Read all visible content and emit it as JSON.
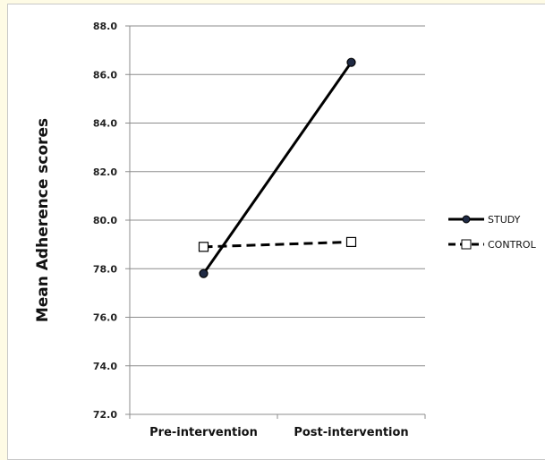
{
  "chart_data": {
    "type": "line",
    "categories": [
      "Pre-intervention",
      "Post-intervention"
    ],
    "ylabel": "Mean Adherence scores",
    "xlabel": "",
    "ylim": [
      72.0,
      88.0
    ],
    "y_ticks": [
      "72.0",
      "74.0",
      "76.0",
      "78.0",
      "80.0",
      "82.0",
      "84.0",
      "86.0",
      "88.0"
    ],
    "grid": true,
    "legend_position": "right",
    "series": [
      {
        "name": "STUDY",
        "values": [
          77.8,
          86.5
        ],
        "line_style": "solid",
        "marker": "filled-circle",
        "color": "#000000",
        "marker_color": "#1f2a44"
      },
      {
        "name": "CONTROL",
        "values": [
          78.9,
          79.1
        ],
        "line_style": "dashed",
        "marker": "open-square",
        "color": "#000000",
        "marker_color": "#ffffff"
      }
    ]
  }
}
